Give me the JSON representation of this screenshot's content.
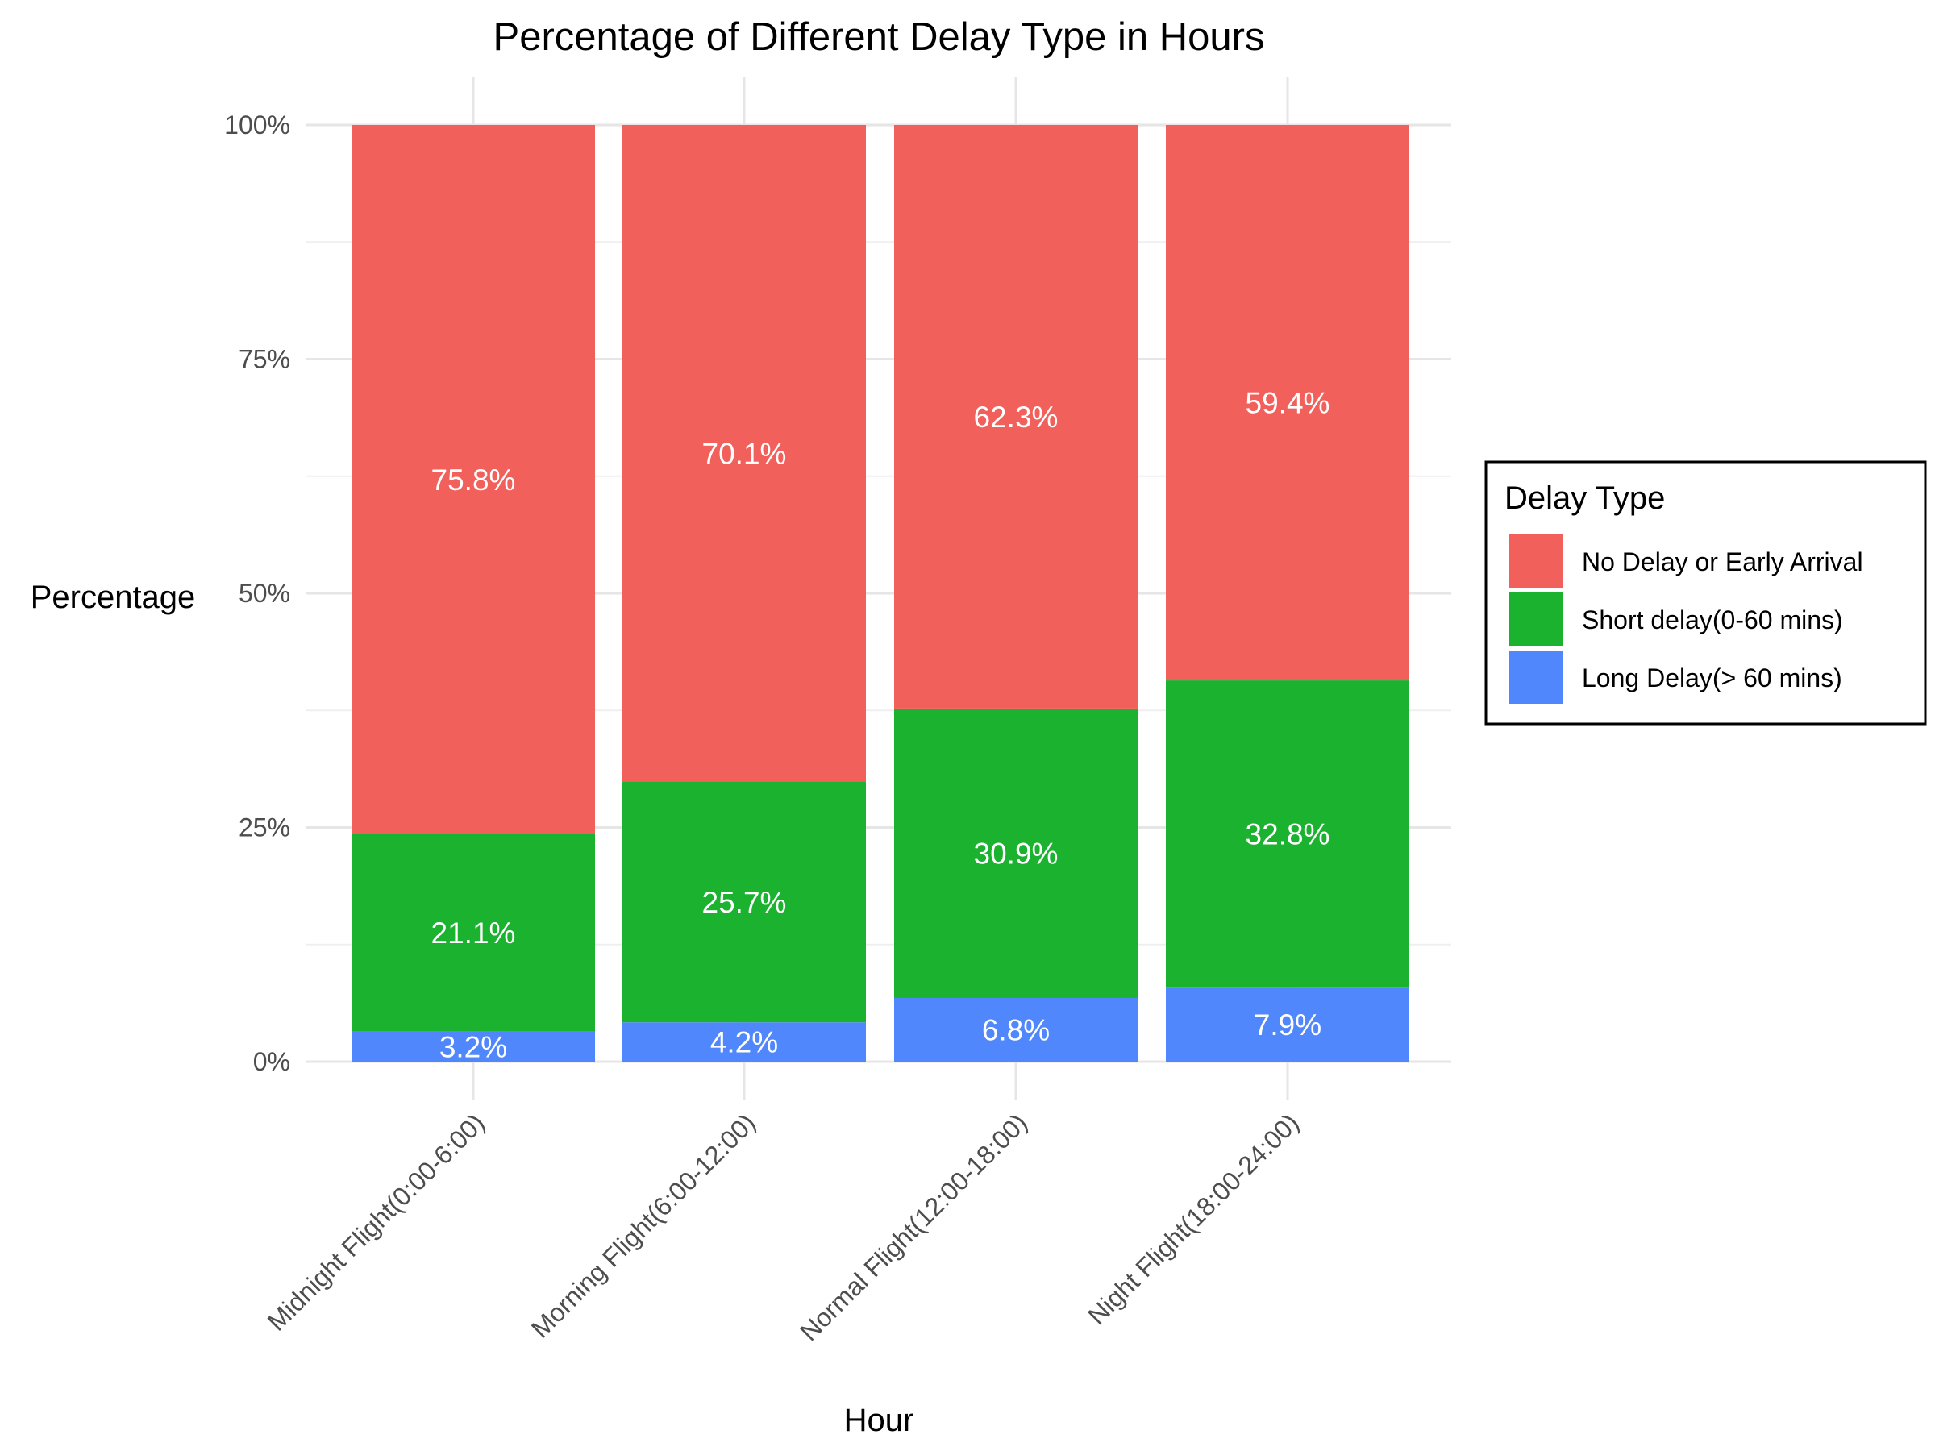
{
  "chart_data": {
    "type": "bar",
    "stacked": "percent",
    "title": "Percentage of Different Delay Type in Hours",
    "xlabel": "Hour",
    "ylabel": "Percentage",
    "ylim": [
      0,
      100
    ],
    "y_ticks": [
      "0%",
      "25%",
      "50%",
      "75%",
      "100%"
    ],
    "y_tick_values": [
      0,
      25,
      50,
      75,
      100
    ],
    "grid": true,
    "legend_position": "right",
    "legend_title": "Delay Type",
    "categories": [
      "Midnight Flight(0:00-6:00)",
      "Morning Flight(6:00-12:00)",
      "Normal Flight(12:00-18:00)",
      "Night Flight(18:00-24:00)"
    ],
    "series": [
      {
        "name": "Long Delay(> 60 mins)",
        "color": "#5087fc",
        "values": [
          3.2,
          4.2,
          6.8,
          7.9
        ],
        "labels": [
          "3.2%",
          "4.2%",
          "6.8%",
          "7.9%"
        ]
      },
      {
        "name": "Short delay(0-60 mins)",
        "color": "#1bb230",
        "values": [
          21.1,
          25.7,
          30.9,
          32.8
        ],
        "labels": [
          "21.1%",
          "25.7%",
          "30.9%",
          "32.8%"
        ]
      },
      {
        "name": "No Delay or Early Arrival",
        "color": "#f2605b",
        "values": [
          75.8,
          70.1,
          62.3,
          59.4
        ],
        "labels": [
          "75.8%",
          "70.1%",
          "62.3%",
          "59.4%"
        ]
      }
    ],
    "legend_order": [
      "No Delay or Early Arrival",
      "Short delay(0-60 mins)",
      "Long Delay(> 60 mins)"
    ]
  }
}
